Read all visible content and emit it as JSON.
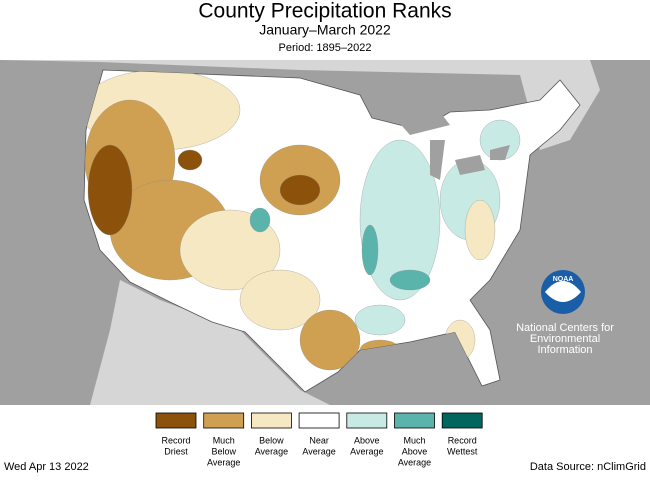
{
  "header": {
    "title": "County Precipitation Ranks",
    "subtitle": "January–March 2022",
    "period": "Period: 1895–2022"
  },
  "legend": [
    {
      "lines": [
        "Record",
        "Driest"
      ],
      "color": "#8c510a"
    },
    {
      "lines": [
        "Much",
        "Below",
        "Average"
      ],
      "color": "#cfa052"
    },
    {
      "lines": [
        "Below",
        "Average"
      ],
      "color": "#f6e8c3"
    },
    {
      "lines": [
        "Near",
        "Average"
      ],
      "color": "#ffffff"
    },
    {
      "lines": [
        "Above",
        "Average"
      ],
      "color": "#c7eae5"
    },
    {
      "lines": [
        "Much",
        "Above",
        "Average"
      ],
      "color": "#5ab4ac"
    },
    {
      "lines": [
        "Record",
        "Wettest"
      ],
      "color": "#01665e"
    }
  ],
  "logo": {
    "text": "NOAA",
    "org": [
      "National Centers for",
      "Environmental",
      "Information"
    ]
  },
  "footer": {
    "date": "Wed Apr 13 2022",
    "source": "Data Source: nClimGrid"
  }
}
